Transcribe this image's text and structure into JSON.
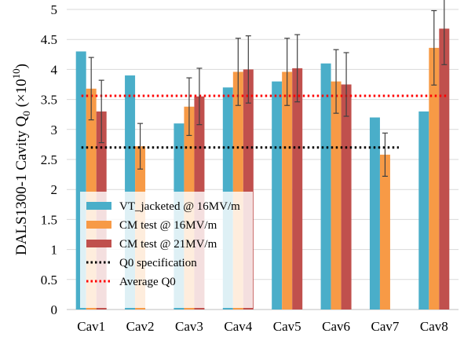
{
  "chart_data": {
    "type": "bar",
    "categories": [
      "Cav1",
      "Cav2",
      "Cav3",
      "Cav4",
      "Cav5",
      "Cav6",
      "Cav7",
      "Cav8"
    ],
    "series": [
      {
        "name": "VT_jacketed @ 16MV/m",
        "color": "#4aaec9",
        "values": [
          4.3,
          3.9,
          3.1,
          3.7,
          3.8,
          4.1,
          3.2,
          3.3
        ],
        "errors": [
          null,
          null,
          null,
          null,
          null,
          null,
          null,
          null
        ]
      },
      {
        "name": "CM test @ 16MV/m",
        "color": "#f79a46",
        "values": [
          3.68,
          2.72,
          3.38,
          3.96,
          3.96,
          3.8,
          2.58,
          4.36
        ],
        "errors": [
          0.52,
          0.38,
          0.48,
          0.56,
          0.56,
          0.53,
          0.36,
          0.62
        ]
      },
      {
        "name": "CM test @ 21MV/m",
        "color": "#c0504d",
        "values": [
          3.3,
          null,
          3.55,
          4.0,
          4.02,
          3.75,
          null,
          4.68
        ],
        "errors": [
          0.52,
          null,
          0.47,
          0.56,
          0.56,
          0.53,
          null,
          0.6
        ]
      }
    ],
    "reference_lines": [
      {
        "name": "Q0 specification",
        "value": 2.7,
        "color": "#000000",
        "style": "dotted",
        "extent": "Cav1-Cav7"
      },
      {
        "name": "Average Q0",
        "value": 3.56,
        "color": "#ff0000",
        "style": "dotted",
        "extent": "Cav1-Cav8"
      }
    ],
    "ylabel_main": "DALS1300-1  Cavity Q",
    "ylabel_sub": "0",
    "ylabel_unit": " (×10",
    "ylabel_exp": "10",
    "ylabel_close": ")",
    "ylim": [
      0,
      5
    ],
    "yticks": [
      "0",
      "0.5",
      "1",
      "1.5",
      "2",
      "2.5",
      "3",
      "3.5",
      "4",
      "4.5",
      "5"
    ],
    "grid": true,
    "legend_placement": "bottom-left"
  }
}
